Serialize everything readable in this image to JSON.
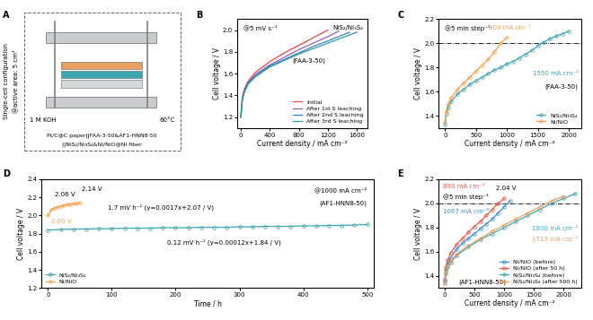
{
  "diagram": {
    "label": "A",
    "side_text": [
      "Single-cell configuration",
      "@active area: 5 cm²"
    ],
    "electrolyte": "1 M KOH",
    "temperature": "60°C",
    "cell": [
      "Pt/C@C paper||FAA-3-50&AF1-HNN8-50",
      "||NiS₂/Ni₃S₄&Ni/NiO@Ni fiber"
    ]
  },
  "chart_data": [
    {
      "type": "line",
      "label": "B",
      "xlabel": "Current density / mA cm⁻²",
      "ylabel": "Cell voltage / V",
      "xlim": [
        -50,
        1750
      ],
      "xticks": [
        0,
        400,
        800,
        1200,
        1600
      ],
      "ylim": [
        1.1,
        2.1
      ],
      "yticks": [
        1.2,
        1.4,
        1.6,
        1.8,
        2.0
      ],
      "legend": "lower right",
      "annotations": [
        {
          "text": "@5 mV s⁻¹"
        },
        {
          "text": "NiS₂/Ni₃S₄"
        },
        {
          "text": "(FAA-3-50)"
        }
      ],
      "series": [
        {
          "name": "Initial",
          "color": "#e8453c",
          "line_style": "solid",
          "x": [
            0,
            20,
            50,
            100,
            200,
            300,
            400,
            600,
            800,
            1000,
            1200
          ],
          "values": [
            1.2,
            1.38,
            1.46,
            1.53,
            1.61,
            1.66,
            1.71,
            1.79,
            1.86,
            1.93,
            2.0
          ]
        },
        {
          "name": "After 1st S leaching",
          "color": "#9b59b6",
          "line_style": "solid",
          "x": [
            0,
            20,
            50,
            100,
            200,
            400,
            600,
            800,
            1000,
            1200,
            1350
          ],
          "values": [
            1.2,
            1.37,
            1.45,
            1.52,
            1.59,
            1.68,
            1.75,
            1.82,
            1.88,
            1.94,
            1.99
          ]
        },
        {
          "name": "After 2nd S leaching",
          "color": "#3a7bd5",
          "line_style": "solid",
          "x": [
            0,
            20,
            50,
            100,
            200,
            400,
            600,
            800,
            1000,
            1200,
            1500
          ],
          "values": [
            1.2,
            1.36,
            1.44,
            1.51,
            1.58,
            1.67,
            1.73,
            1.79,
            1.85,
            1.9,
            1.98
          ]
        },
        {
          "name": "After 3rd S leaching",
          "color": "#2aa198",
          "line_style": "solid",
          "x": [
            0,
            20,
            50,
            100,
            200,
            400,
            600,
            800,
            1000,
            1200,
            1400,
            1600
          ],
          "values": [
            1.2,
            1.35,
            1.43,
            1.5,
            1.57,
            1.66,
            1.72,
            1.78,
            1.83,
            1.88,
            1.93,
            1.98
          ]
        }
      ]
    },
    {
      "type": "line",
      "label": "C",
      "xlabel": "Current density / mA cm⁻²",
      "ylabel": "Cell voltage / V",
      "xlim": [
        -100,
        2200
      ],
      "xticks": [
        0,
        500,
        1000,
        1500,
        2000
      ],
      "ylim": [
        1.3,
        2.2
      ],
      "yticks": [
        1.4,
        1.6,
        1.8,
        2.0,
        2.2
      ],
      "legend": "lower right",
      "reference_line": 2.0,
      "annotations": [
        {
          "text": "@5 min step⁻¹"
        },
        {
          "text": "900 mA cm⁻²",
          "color": "#f0a04b"
        },
        {
          "text": "1550 mA cm⁻²",
          "color": "#3aa6b0"
        },
        {
          "text": "(FAA-3-50)"
        }
      ],
      "series": [
        {
          "name": "NiS₂/Ni₃S₄",
          "color": "#3aa6b0",
          "marker": "circle",
          "line_style": "solid",
          "x": [
            0,
            20,
            50,
            100,
            200,
            300,
            400,
            500,
            600,
            700,
            800,
            900,
            1000,
            1100,
            1200,
            1300,
            1400,
            1500,
            1600,
            1700,
            1800,
            1900,
            2000
          ],
          "values": [
            1.33,
            1.42,
            1.47,
            1.52,
            1.58,
            1.62,
            1.66,
            1.69,
            1.72,
            1.75,
            1.78,
            1.8,
            1.83,
            1.85,
            1.88,
            1.91,
            1.94,
            1.98,
            2.01,
            2.04,
            2.06,
            2.08,
            2.1
          ]
        },
        {
          "name": "Ni/NiO",
          "color": "#f0a04b",
          "marker": "circle",
          "line_style": "solid",
          "x": [
            0,
            20,
            50,
            100,
            200,
            300,
            400,
            500,
            600,
            700,
            800,
            900,
            1000
          ],
          "values": [
            1.35,
            1.44,
            1.5,
            1.55,
            1.62,
            1.67,
            1.72,
            1.77,
            1.82,
            1.87,
            1.93,
            2.0,
            2.05
          ]
        }
      ]
    },
    {
      "type": "line",
      "label": "D",
      "xlabel": "Time / h",
      "ylabel": "Cell voltage / V",
      "xlim": [
        -10,
        510
      ],
      "xticks": [
        0,
        100,
        200,
        300,
        400,
        500
      ],
      "ylim": [
        1.2,
        2.4
      ],
      "yticks": [
        1.2,
        1.4,
        1.6,
        1.8,
        2.0,
        2.2,
        2.4
      ],
      "legend": "lower left",
      "annotations": [
        {
          "text": "2.00 V",
          "color": "#f0a04b"
        },
        {
          "text": "2.06 V"
        },
        {
          "text": "2.14 V"
        },
        {
          "text": "1.7 mV h⁻¹ (y=0.0017x+2.07 / V)"
        },
        {
          "text": "@1000 mA cm⁻²"
        },
        {
          "text": "(AF1-HNN8-50)"
        },
        {
          "text": "0.12 mV h⁻¹ (y=0.00012x+1.84 / V)"
        }
      ],
      "series": [
        {
          "name": "NiS₂/Ni₃S₄",
          "color": "#3aa6b0",
          "marker": "circle",
          "line_style": "solid",
          "x": [
            0,
            20,
            40,
            60,
            80,
            100,
            120,
            140,
            160,
            180,
            200,
            220,
            240,
            260,
            280,
            300,
            320,
            340,
            360,
            380,
            400,
            420,
            440,
            460,
            480,
            500
          ],
          "values": [
            1.84,
            1.845,
            1.85,
            1.85,
            1.855,
            1.855,
            1.86,
            1.86,
            1.86,
            1.865,
            1.865,
            1.865,
            1.87,
            1.87,
            1.87,
            1.875,
            1.875,
            1.88,
            1.88,
            1.88,
            1.885,
            1.885,
            1.89,
            1.89,
            1.895,
            1.9
          ]
        },
        {
          "name": "Ni/NiO",
          "color": "#f0a04b",
          "marker": "circle",
          "line_style": "solid",
          "x": [
            0,
            5,
            10,
            15,
            20,
            25,
            30,
            35,
            40,
            45,
            50
          ],
          "values": [
            2.0,
            2.06,
            2.08,
            2.09,
            2.1,
            2.11,
            2.12,
            2.12,
            2.13,
            2.13,
            2.14
          ]
        }
      ]
    },
    {
      "type": "line",
      "label": "E",
      "xlabel": "Current density / mA cm⁻²",
      "ylabel": "Cell voltage / V",
      "xlim": [
        -100,
        2300
      ],
      "xticks": [
        0,
        500,
        1000,
        1500,
        2000
      ],
      "ylim": [
        1.3,
        2.2
      ],
      "yticks": [
        1.4,
        1.6,
        1.8,
        2.0,
        2.2
      ],
      "legend": "lower right",
      "reference_line": 2.0,
      "annotations": [
        {
          "text": "890 mA cm⁻²",
          "color": "#e8574a"
        },
        {
          "text": "@5 min step⁻¹"
        },
        {
          "text": "1067 mA cm⁻²",
          "color": "#3d8fd4"
        },
        {
          "text": "2.04 V"
        },
        {
          "text": "1800 mA cm⁻²",
          "color": "#3aa6b0"
        },
        {
          "text": "1713 mA cm⁻²",
          "color": "#e8a060"
        },
        {
          "text": "(AF1-HNN8-50)"
        }
      ],
      "series": [
        {
          "name": "Ni/NiO (before)",
          "color": "#3d8fd4",
          "marker": "circle",
          "line_style": "solid",
          "x": [
            0,
            20,
            50,
            100,
            200,
            300,
            400,
            500,
            600,
            700,
            800,
            900,
            1000,
            1100
          ],
          "values": [
            1.36,
            1.45,
            1.5,
            1.55,
            1.62,
            1.67,
            1.71,
            1.75,
            1.79,
            1.83,
            1.87,
            1.92,
            1.97,
            2.02
          ]
        },
        {
          "name": "Ni/NiO (after 50 h)",
          "color": "#e8574a",
          "marker": "circle",
          "line_style": "solid",
          "x": [
            0,
            20,
            50,
            100,
            200,
            300,
            400,
            500,
            600,
            700,
            800,
            900,
            1000
          ],
          "values": [
            1.37,
            1.47,
            1.53,
            1.59,
            1.66,
            1.71,
            1.76,
            1.81,
            1.85,
            1.9,
            1.95,
            2.0,
            2.04
          ]
        },
        {
          "name": "NiS₂/Ni₃S₄ (before)",
          "color": "#3aa6b0",
          "marker": "circle",
          "line_style": "solid",
          "x": [
            0,
            20,
            50,
            100,
            200,
            400,
            600,
            800,
            1000,
            1200,
            1400,
            1600,
            1800,
            2000,
            2200
          ],
          "values": [
            1.34,
            1.42,
            1.47,
            1.51,
            1.57,
            1.64,
            1.7,
            1.75,
            1.8,
            1.85,
            1.9,
            1.95,
            2.0,
            2.04,
            2.08
          ]
        },
        {
          "name": "NiS₂/Ni₃S₄ (after 500 h)",
          "color": "#e8a060",
          "marker": "circle",
          "line_style": "solid",
          "x": [
            0,
            20,
            50,
            100,
            200,
            400,
            600,
            800,
            1000,
            1200,
            1400,
            1600,
            1800,
            2000
          ],
          "values": [
            1.34,
            1.43,
            1.48,
            1.52,
            1.58,
            1.65,
            1.71,
            1.77,
            1.82,
            1.87,
            1.92,
            1.97,
            2.02,
            2.06
          ]
        }
      ]
    }
  ]
}
